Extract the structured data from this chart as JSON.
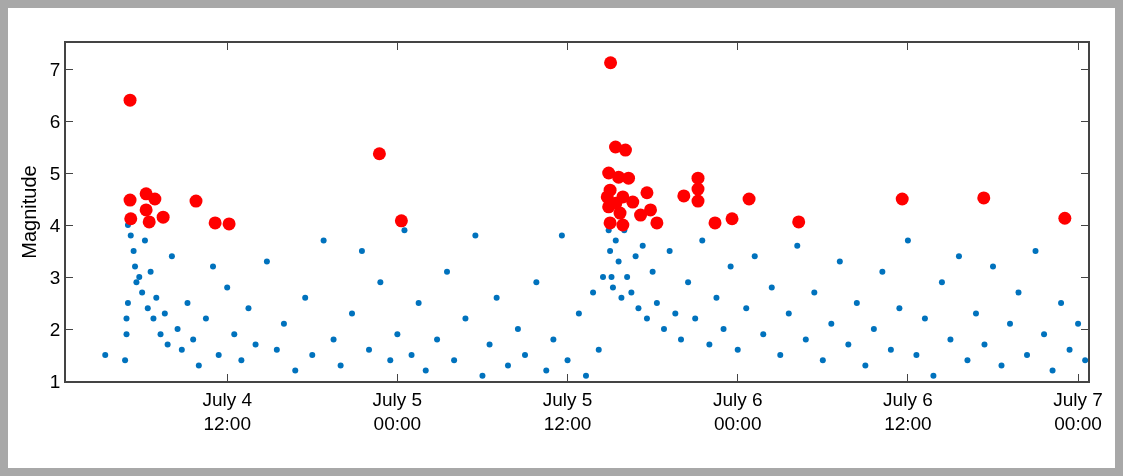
{
  "chart_data": {
    "type": "scatter",
    "ylabel": "Magnitude",
    "marker": "circle",
    "grid": false,
    "xlim": [
      "--07-04T00:38",
      "--07-07T00:42"
    ],
    "xticks": [
      {
        "value": "--07-04T12:00",
        "label": "July 4\n12:00"
      },
      {
        "value": "--07-05T00:00",
        "label": "July 5\n00:00"
      },
      {
        "value": "--07-05T12:00",
        "label": "July 5\n12:00"
      },
      {
        "value": "--07-06T00:00",
        "label": "July 6\n00:00"
      },
      {
        "value": "--07-06T12:00",
        "label": "July 6\n12:00"
      },
      {
        "value": "--07-07T00:00",
        "label": "July 7\n00:00"
      }
    ],
    "ylim": [
      1,
      7.5
    ],
    "yticks": [
      1,
      2,
      3,
      4,
      5,
      6,
      7
    ],
    "series": [
      {
        "color": "#0072bd",
        "x": [
          "--07-04T03:24",
          "--07-04T04:48",
          "--07-04T04:54",
          "--07-04T04:54",
          "--07-04T05:00",
          "--07-04T05:00",
          "--07-04T05:12",
          "--07-04T05:24",
          "--07-04T05:30",
          "--07-04T05:36",
          "--07-04T05:48",
          "--07-04T06:00",
          "--07-04T06:12",
          "--07-04T06:24",
          "--07-04T06:36",
          "--07-04T06:48",
          "--07-04T07:00",
          "--07-04T07:18",
          "--07-04T07:36",
          "--07-04T07:48",
          "--07-04T08:06",
          "--07-04T08:30",
          "--07-04T08:48",
          "--07-04T09:12",
          "--07-04T09:36",
          "--07-04T10:00",
          "--07-04T10:30",
          "--07-04T11:00",
          "--07-04T11:24",
          "--07-04T12:00",
          "--07-04T12:30",
          "--07-04T13:00",
          "--07-04T13:30",
          "--07-04T14:00",
          "--07-04T14:48",
          "--07-04T15:30",
          "--07-04T16:00",
          "--07-04T16:48",
          "--07-04T17:30",
          "--07-04T18:00",
          "--07-04T18:48",
          "--07-04T19:30",
          "--07-04T20:00",
          "--07-04T20:48",
          "--07-04T21:30",
          "--07-04T22:00",
          "--07-04T22:48",
          "--07-04T23:30",
          "--07-05T00:00",
          "--07-05T00:30",
          "--07-05T01:00",
          "--07-05T01:30",
          "--07-05T02:00",
          "--07-05T02:48",
          "--07-05T03:30",
          "--07-05T04:00",
          "--07-05T04:48",
          "--07-05T05:30",
          "--07-05T06:00",
          "--07-05T06:30",
          "--07-05T07:00",
          "--07-05T07:48",
          "--07-05T08:30",
          "--07-05T09:00",
          "--07-05T09:48",
          "--07-05T10:30",
          "--07-05T11:00",
          "--07-05T11:36",
          "--07-05T12:00",
          "--07-05T12:48",
          "--07-05T13:18",
          "--07-05T13:48",
          "--07-05T14:12",
          "--07-05T14:30",
          "--07-05T14:54",
          "--07-05T15:00",
          "--07-05T15:06",
          "--07-05T15:12",
          "--07-05T15:24",
          "--07-05T15:36",
          "--07-05T15:48",
          "--07-05T16:00",
          "--07-05T16:12",
          "--07-05T16:30",
          "--07-05T16:48",
          "--07-05T17:00",
          "--07-05T17:18",
          "--07-05T17:36",
          "--07-05T18:00",
          "--07-05T18:18",
          "--07-05T18:48",
          "--07-05T19:12",
          "--07-05T19:36",
          "--07-05T20:00",
          "--07-05T20:30",
          "--07-05T21:00",
          "--07-05T21:30",
          "--07-05T22:00",
          "--07-05T22:30",
          "--07-05T23:00",
          "--07-05T23:30",
          "--07-06T00:00",
          "--07-06T00:36",
          "--07-06T01:12",
          "--07-06T01:48",
          "--07-06T02:24",
          "--07-06T03:00",
          "--07-06T03:36",
          "--07-06T04:12",
          "--07-06T04:48",
          "--07-06T05:24",
          "--07-06T06:00",
          "--07-06T06:36",
          "--07-06T07:12",
          "--07-06T07:48",
          "--07-06T08:24",
          "--07-06T09:00",
          "--07-06T09:36",
          "--07-06T10:12",
          "--07-06T10:48",
          "--07-06T11:24",
          "--07-06T12:00",
          "--07-06T12:36",
          "--07-06T13:12",
          "--07-06T13:48",
          "--07-06T14:24",
          "--07-06T15:00",
          "--07-06T15:36",
          "--07-06T16:12",
          "--07-06T16:48",
          "--07-06T17:24",
          "--07-06T18:00",
          "--07-06T18:36",
          "--07-06T19:12",
          "--07-06T19:48",
          "--07-06T20:24",
          "--07-06T21:00",
          "--07-06T21:36",
          "--07-06T22:12",
          "--07-06T22:48",
          "--07-06T23:24",
          "--07-07T00:00",
          "--07-07T00:30"
        ],
        "values": [
          1.5,
          1.4,
          1.9,
          2.2,
          2.5,
          4.0,
          3.8,
          3.5,
          3.2,
          2.9,
          3.0,
          2.7,
          3.7,
          2.4,
          3.1,
          2.2,
          2.6,
          1.9,
          2.3,
          1.7,
          3.4,
          2.0,
          1.6,
          2.5,
          1.8,
          1.3,
          2.2,
          3.2,
          1.5,
          2.8,
          1.9,
          1.4,
          2.4,
          1.7,
          3.3,
          1.6,
          2.1,
          1.2,
          2.6,
          1.5,
          3.7,
          1.8,
          1.3,
          2.3,
          3.5,
          1.6,
          2.9,
          1.4,
          1.9,
          3.9,
          1.5,
          2.5,
          1.2,
          1.8,
          3.1,
          1.4,
          2.2,
          3.8,
          1.1,
          1.7,
          2.6,
          1.3,
          2.0,
          1.5,
          2.9,
          1.2,
          1.8,
          3.8,
          1.4,
          2.3,
          1.1,
          2.7,
          1.6,
          3.0,
          3.9,
          3.5,
          3.0,
          2.8,
          3.7,
          3.3,
          2.6,
          3.9,
          3.0,
          2.7,
          3.4,
          2.4,
          3.6,
          2.2,
          3.1,
          2.5,
          2.0,
          3.5,
          2.3,
          1.8,
          2.9,
          2.2,
          3.7,
          1.7,
          2.6,
          2.0,
          3.2,
          1.6,
          2.4,
          3.4,
          1.9,
          2.8,
          1.5,
          2.3,
          3.6,
          1.8,
          2.7,
          1.4,
          2.1,
          3.3,
          1.7,
          2.5,
          1.3,
          2.0,
          3.1,
          1.6,
          2.4,
          3.7,
          1.5,
          2.2,
          1.1,
          2.9,
          1.8,
          3.4,
          1.4,
          2.3,
          1.7,
          3.2,
          1.3,
          2.1,
          2.7,
          1.5,
          3.5,
          1.9,
          1.2,
          2.5,
          1.6,
          2.1,
          1.4
        ]
      },
      {
        "color": "#ff0000",
        "x": [
          "--07-04T05:09",
          "--07-04T05:09",
          "--07-04T05:12",
          "--07-04T06:17",
          "--07-04T06:54",
          "--07-04T06:17",
          "--07-04T06:30",
          "--07-04T07:29",
          "--07-04T09:48",
          "--07-04T11:09",
          "--07-04T12:08",
          "--07-04T22:44",
          "--07-05T00:17",
          "--07-05T15:02",
          "--07-05T15:23",
          "--07-05T16:05",
          "--07-05T14:54",
          "--07-05T15:36",
          "--07-05T16:18",
          "--07-05T15:00",
          "--07-05T15:54",
          "--07-05T16:36",
          "--07-05T14:54",
          "--07-05T15:42",
          "--07-05T15:00",
          "--07-05T15:54",
          "--07-05T14:48",
          "--07-05T15:24",
          "--07-05T17:36",
          "--07-05T17:09",
          "--07-05T17:51",
          "--07-05T18:18",
          "--07-05T20:12",
          "--07-05T21:12",
          "--07-05T21:12",
          "--07-05T21:12",
          "--07-05T22:24",
          "--07-05T23:36",
          "--07-06T00:48",
          "--07-06T04:18",
          "--07-06T11:36",
          "--07-06T17:21",
          "--07-06T23:04"
        ],
        "values": [
          6.4,
          4.48,
          4.12,
          4.6,
          4.5,
          4.29,
          4.06,
          4.15,
          4.46,
          4.04,
          4.02,
          5.37,
          4.08,
          7.12,
          5.5,
          5.44,
          5.0,
          4.92,
          4.9,
          4.67,
          4.54,
          4.44,
          4.35,
          4.23,
          4.04,
          4.0,
          4.54,
          4.42,
          4.62,
          4.19,
          4.29,
          4.04,
          4.56,
          4.9,
          4.69,
          4.46,
          4.04,
          4.12,
          4.5,
          4.06,
          4.5,
          4.52,
          4.13
        ]
      }
    ]
  }
}
